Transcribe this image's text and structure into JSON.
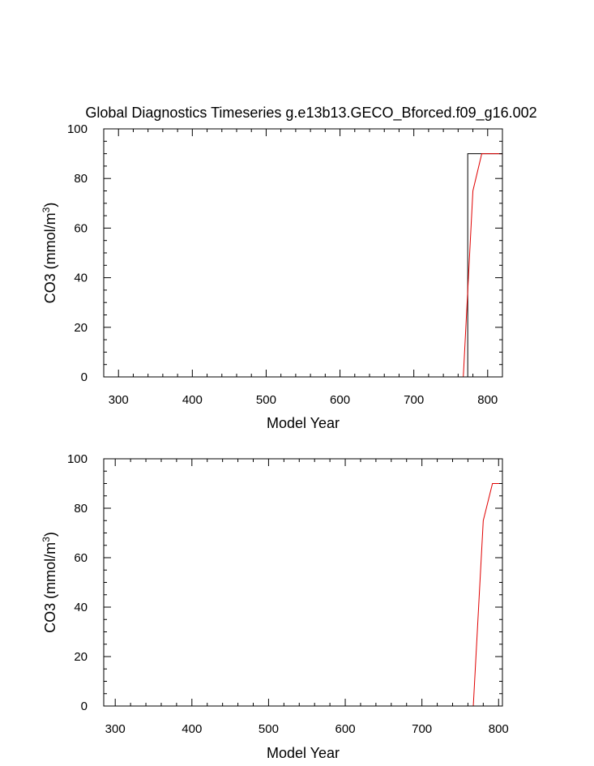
{
  "chart_data": [
    {
      "type": "line",
      "title": "Global Diagnostics Timeseries g.e13b13.GECO_Bforced.f09_g16.002",
      "xlabel": "Model Year",
      "ylabel_main": "CO3 (mmol/m",
      "ylabel_sup": "3",
      "ylabel_close": ")",
      "xlim": [
        280,
        820
      ],
      "ylim": [
        0,
        100
      ],
      "xticks": [
        300,
        400,
        500,
        600,
        700,
        800
      ],
      "yticks": [
        0,
        20,
        40,
        60,
        80,
        100
      ],
      "grid": false,
      "series": [
        {
          "color": "#000000",
          "x": [
            280,
            773,
            773,
            820
          ],
          "y": [
            0,
            0,
            90,
            90
          ]
        },
        {
          "color": "#e00000",
          "x": [
            280,
            767,
            780,
            792,
            820
          ],
          "y": [
            0,
            0,
            75,
            90,
            90
          ]
        }
      ]
    },
    {
      "type": "line",
      "title": "",
      "xlabel": "Model Year",
      "ylabel_main": "CO3 (mmol/m",
      "ylabel_sup": "3",
      "ylabel_close": ")",
      "xlim": [
        285,
        805
      ],
      "ylim": [
        0,
        100
      ],
      "xticks": [
        300,
        400,
        500,
        600,
        700,
        800
      ],
      "yticks": [
        0,
        20,
        40,
        60,
        80,
        100
      ],
      "grid": false,
      "series": [
        {
          "color": "#e00000",
          "x": [
            285,
            767,
            780,
            792,
            805
          ],
          "y": [
            0,
            0,
            75,
            90,
            90
          ]
        }
      ]
    }
  ]
}
